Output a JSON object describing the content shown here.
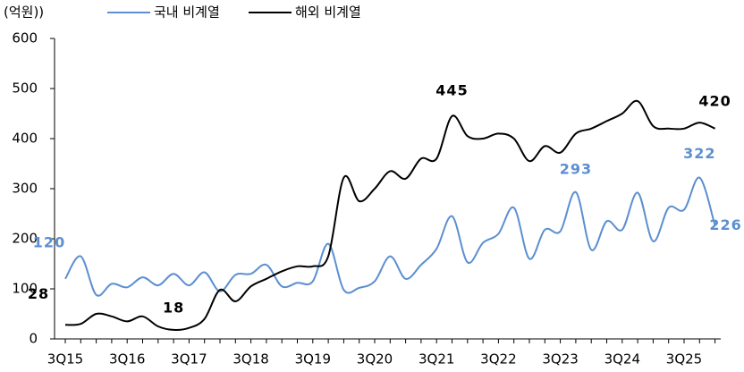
{
  "chart_data": {
    "type": "line",
    "unit_label": "(억원))",
    "categories": [
      "3Q15",
      null,
      null,
      null,
      "3Q16",
      null,
      null,
      null,
      "3Q17",
      null,
      null,
      null,
      "3Q18",
      null,
      null,
      null,
      "3Q19",
      null,
      null,
      null,
      "3Q20",
      null,
      null,
      null,
      "3Q21",
      null,
      null,
      null,
      "3Q22",
      null,
      null,
      null,
      "3Q23",
      null,
      null,
      null,
      "3Q24",
      null,
      null,
      null,
      "3Q25",
      null,
      null
    ],
    "series": [
      {
        "name": "국내 비계열",
        "color": "#5b8fd0",
        "values": [
          120,
          165,
          88,
          110,
          103,
          123,
          107,
          130,
          107,
          133,
          95,
          128,
          130,
          148,
          105,
          112,
          115,
          190,
          98,
          102,
          115,
          165,
          120,
          148,
          180,
          245,
          153,
          192,
          210,
          262,
          160,
          218,
          215,
          293,
          178,
          235,
          218,
          292,
          195,
          262,
          258,
          322,
          226
        ],
        "value_labels": [
          "120",
          null,
          null,
          null,
          null,
          null,
          null,
          null,
          null,
          null,
          null,
          null,
          null,
          null,
          null,
          null,
          null,
          null,
          null,
          null,
          null,
          null,
          null,
          null,
          null,
          null,
          null,
          null,
          null,
          null,
          null,
          null,
          null,
          "293",
          null,
          null,
          null,
          null,
          null,
          null,
          null,
          "322",
          "226"
        ]
      },
      {
        "name": "해외 비계열",
        "color": "#000000",
        "values": [
          28,
          30,
          50,
          45,
          35,
          45,
          25,
          18,
          22,
          40,
          98,
          75,
          105,
          120,
          135,
          145,
          145,
          165,
          322,
          275,
          300,
          335,
          320,
          360,
          360,
          445,
          405,
          400,
          410,
          400,
          355,
          385,
          372,
          410,
          420,
          435,
          450,
          475,
          425,
          420,
          420,
          432,
          420
        ],
        "value_labels": [
          "28",
          null,
          null,
          null,
          null,
          null,
          null,
          "18",
          null,
          null,
          null,
          null,
          null,
          null,
          null,
          null,
          null,
          null,
          null,
          null,
          null,
          null,
          null,
          null,
          null,
          "445",
          null,
          null,
          null,
          null,
          null,
          null,
          null,
          null,
          null,
          null,
          null,
          null,
          null,
          null,
          null,
          null,
          "420"
        ]
      }
    ],
    "ylim": [
      0,
      600
    ],
    "yticks": [
      0,
      100,
      200,
      300,
      400,
      500,
      600
    ],
    "grid": false
  }
}
